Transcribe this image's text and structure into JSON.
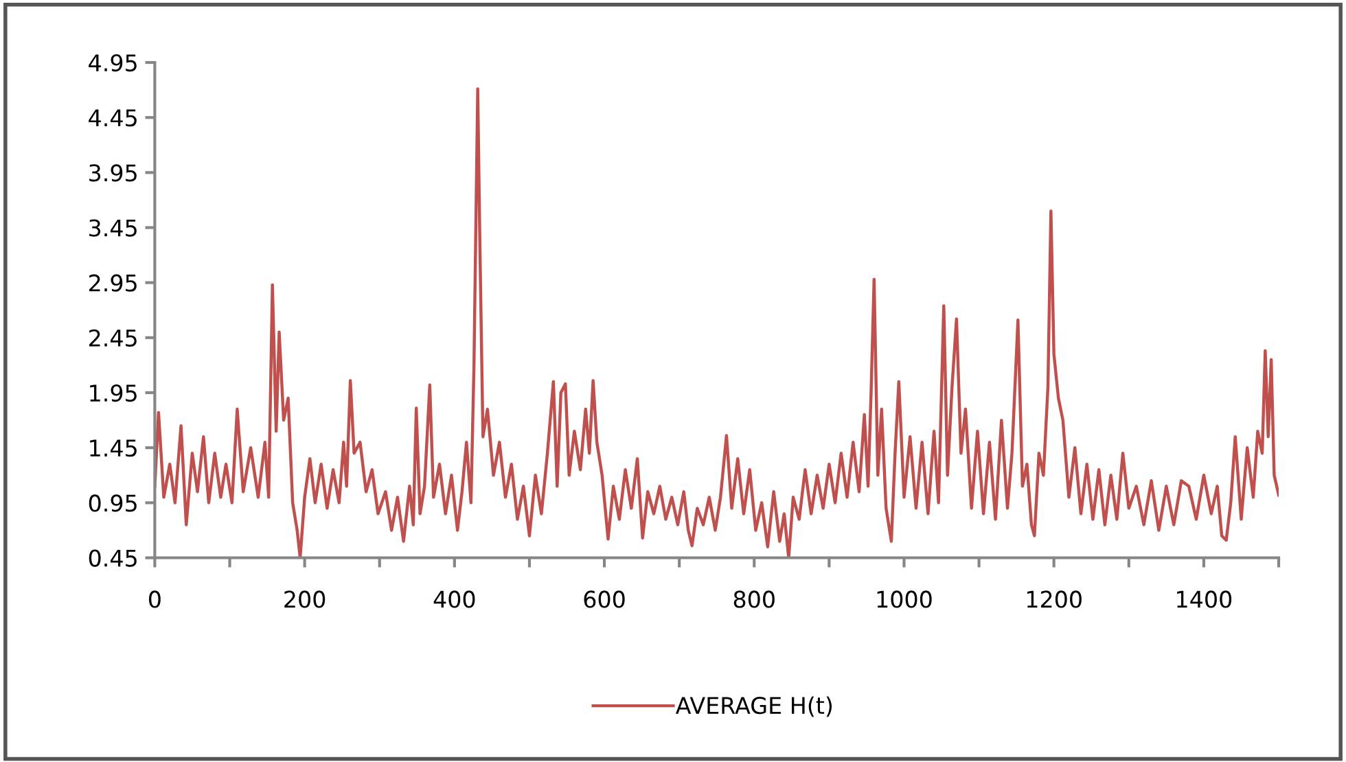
{
  "chart_data": {
    "type": "line",
    "xlim": [
      0,
      1500
    ],
    "ylim": [
      0.45,
      4.95
    ],
    "xticks": [
      0,
      {
        "value": 100,
        "label": null
      },
      200,
      {
        "value": 300,
        "label": null
      },
      400,
      {
        "value": 500,
        "label": null
      },
      600,
      {
        "value": 700,
        "label": null
      },
      800,
      {
        "value": 900,
        "label": null
      },
      1000,
      {
        "value": 1100,
        "label": null
      },
      1200,
      {
        "value": 1300,
        "label": null
      },
      1400,
      {
        "value": 1500,
        "label": null
      }
    ],
    "yticks": [
      0.45,
      0.95,
      1.45,
      1.95,
      2.45,
      2.95,
      3.45,
      3.95,
      4.45,
      4.95
    ],
    "grid": false,
    "legend": "bottom",
    "marker": "none",
    "line_style": "solid",
    "series": [
      {
        "name": "AVERAGE H(t)",
        "color": "#c0504d",
        "x": [
          0,
          5,
          12,
          20,
          27,
          35,
          42,
          50,
          57,
          65,
          72,
          80,
          88,
          95,
          103,
          110,
          118,
          128,
          138,
          147,
          152,
          157,
          162,
          166,
          172,
          178,
          184,
          190,
          194,
          200,
          207,
          214,
          222,
          230,
          238,
          246,
          252,
          256,
          261,
          266,
          274,
          282,
          290,
          298,
          308,
          316,
          324,
          332,
          340,
          345,
          349,
          354,
          360,
          367,
          372,
          380,
          388,
          396,
          404,
          410,
          416,
          422,
          426,
          431,
          434,
          438,
          444,
          452,
          460,
          468,
          476,
          484,
          492,
          500,
          508,
          516,
          524,
          532,
          537,
          542,
          548,
          553,
          560,
          568,
          575,
          580,
          585,
          590,
          597,
          605,
          612,
          620,
          628,
          636,
          644,
          651,
          658,
          666,
          674,
          682,
          690,
          698,
          706,
          712,
          717,
          724,
          732,
          740,
          748,
          755,
          763,
          770,
          778,
          786,
          794,
          802,
          810,
          818,
          826,
          834,
          840,
          846,
          852,
          860,
          868,
          876,
          884,
          892,
          900,
          908,
          916,
          924,
          932,
          940,
          947,
          952,
          956,
          960,
          965,
          970,
          976,
          983,
          988,
          993,
          1000,
          1008,
          1016,
          1024,
          1032,
          1040,
          1046,
          1053,
          1058,
          1064,
          1070,
          1076,
          1082,
          1090,
          1098,
          1106,
          1114,
          1122,
          1130,
          1138,
          1144,
          1152,
          1158,
          1164,
          1170,
          1174,
          1180,
          1186,
          1192,
          1196,
          1200,
          1206,
          1212,
          1220,
          1228,
          1236,
          1244,
          1252,
          1260,
          1268,
          1276,
          1284,
          1292,
          1300,
          1310,
          1320,
          1330,
          1340,
          1350,
          1360,
          1370,
          1380,
          1390,
          1400,
          1410,
          1418,
          1424,
          1430,
          1436,
          1442,
          1450,
          1458,
          1466,
          1472,
          1478,
          1482,
          1486,
          1490,
          1494,
          1500
        ],
        "values": [
          1.1,
          1.77,
          1.0,
          1.3,
          0.95,
          1.65,
          0.75,
          1.4,
          1.05,
          1.55,
          0.95,
          1.4,
          1.0,
          1.3,
          0.95,
          1.8,
          1.05,
          1.45,
          1.0,
          1.5,
          1.0,
          2.93,
          1.6,
          2.5,
          1.7,
          1.9,
          0.95,
          0.7,
          0.45,
          1.0,
          1.35,
          0.95,
          1.3,
          0.9,
          1.25,
          0.95,
          1.5,
          1.1,
          2.06,
          1.4,
          1.5,
          1.05,
          1.25,
          0.85,
          1.05,
          0.7,
          1.0,
          0.6,
          1.1,
          0.75,
          1.81,
          0.85,
          1.1,
          2.02,
          1.0,
          1.3,
          0.85,
          1.2,
          0.7,
          1.05,
          1.5,
          0.95,
          2.2,
          4.71,
          3.25,
          1.55,
          1.8,
          1.2,
          1.5,
          1.0,
          1.3,
          0.8,
          1.1,
          0.65,
          1.2,
          0.85,
          1.4,
          2.05,
          1.1,
          1.95,
          2.03,
          1.2,
          1.6,
          1.25,
          1.8,
          1.4,
          2.06,
          1.5,
          1.2,
          0.62,
          1.1,
          0.8,
          1.25,
          0.9,
          1.35,
          0.63,
          1.05,
          0.85,
          1.1,
          0.8,
          1.0,
          0.75,
          1.05,
          0.7,
          0.56,
          0.9,
          0.75,
          1.0,
          0.7,
          1.0,
          1.56,
          0.9,
          1.35,
          0.85,
          1.25,
          0.7,
          0.95,
          0.55,
          1.05,
          0.6,
          0.85,
          0.45,
          1.0,
          0.8,
          1.25,
          0.85,
          1.2,
          0.9,
          1.3,
          0.95,
          1.4,
          1.0,
          1.5,
          1.05,
          1.75,
          1.1,
          1.95,
          2.98,
          1.2,
          1.8,
          0.9,
          0.6,
          1.4,
          2.05,
          1.0,
          1.55,
          0.9,
          1.5,
          0.85,
          1.6,
          0.95,
          2.74,
          1.2,
          2.0,
          2.62,
          1.4,
          1.8,
          0.9,
          1.6,
          0.85,
          1.5,
          0.8,
          1.7,
          0.9,
          1.4,
          2.61,
          1.1,
          1.3,
          0.75,
          0.65,
          1.4,
          1.2,
          2.0,
          3.6,
          2.3,
          1.9,
          1.7,
          1.0,
          1.45,
          0.85,
          1.3,
          0.8,
          1.25,
          0.75,
          1.2,
          0.8,
          1.4,
          0.9,
          1.1,
          0.75,
          1.15,
          0.7,
          1.1,
          0.75,
          1.15,
          1.1,
          0.8,
          1.2,
          0.85,
          1.1,
          0.65,
          0.61,
          0.95,
          1.55,
          0.8,
          1.45,
          1.0,
          1.6,
          1.4,
          2.33,
          1.55,
          2.25,
          1.2,
          1.02
        ]
      }
    ]
  }
}
